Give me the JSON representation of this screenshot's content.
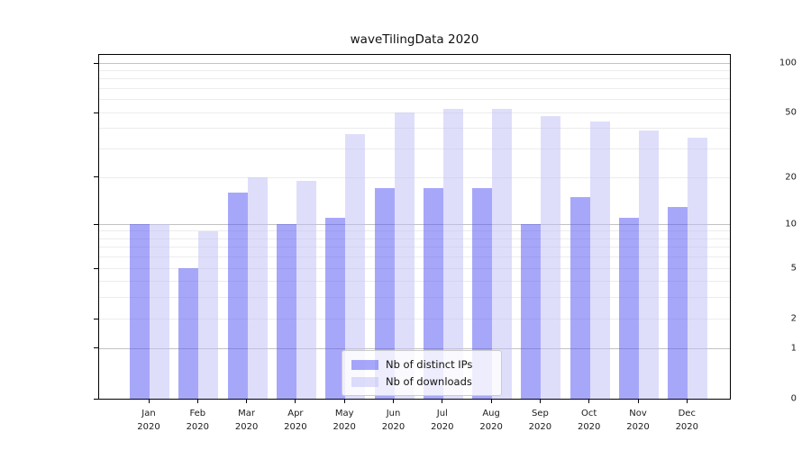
{
  "chart_data": {
    "type": "bar",
    "title": "waveTilingData 2020",
    "categories": [
      "Jan",
      "Feb",
      "Mar",
      "Apr",
      "May",
      "Jun",
      "Jul",
      "Aug",
      "Sep",
      "Oct",
      "Nov",
      "Dec"
    ],
    "category_year": "2020",
    "series": [
      {
        "name": "Nb of distinct IPs",
        "color": "rgba(80,80,245,0.5)",
        "values": [
          10,
          5,
          16,
          10,
          11,
          17,
          17,
          17,
          10,
          15,
          11,
          13
        ]
      },
      {
        "name": "Nb of downloads",
        "color": "rgba(190,190,248,0.5)",
        "values": [
          10,
          9,
          20,
          19,
          37,
          50,
          53,
          53,
          48,
          44,
          39,
          35
        ]
      }
    ],
    "y_axis": {
      "scale": "log1p",
      "ticks": [
        0,
        1,
        2,
        5,
        10,
        20,
        50,
        100
      ],
      "major_gridlines": [
        1,
        10,
        100
      ],
      "minor_gridlines": [
        2,
        3,
        4,
        5,
        6,
        7,
        8,
        9,
        20,
        30,
        40,
        50,
        60,
        70,
        80,
        90
      ],
      "ylim": [
        0,
        112
      ]
    },
    "xlabel": "",
    "ylabel": "",
    "grid": true,
    "legend_position": "lower center"
  }
}
